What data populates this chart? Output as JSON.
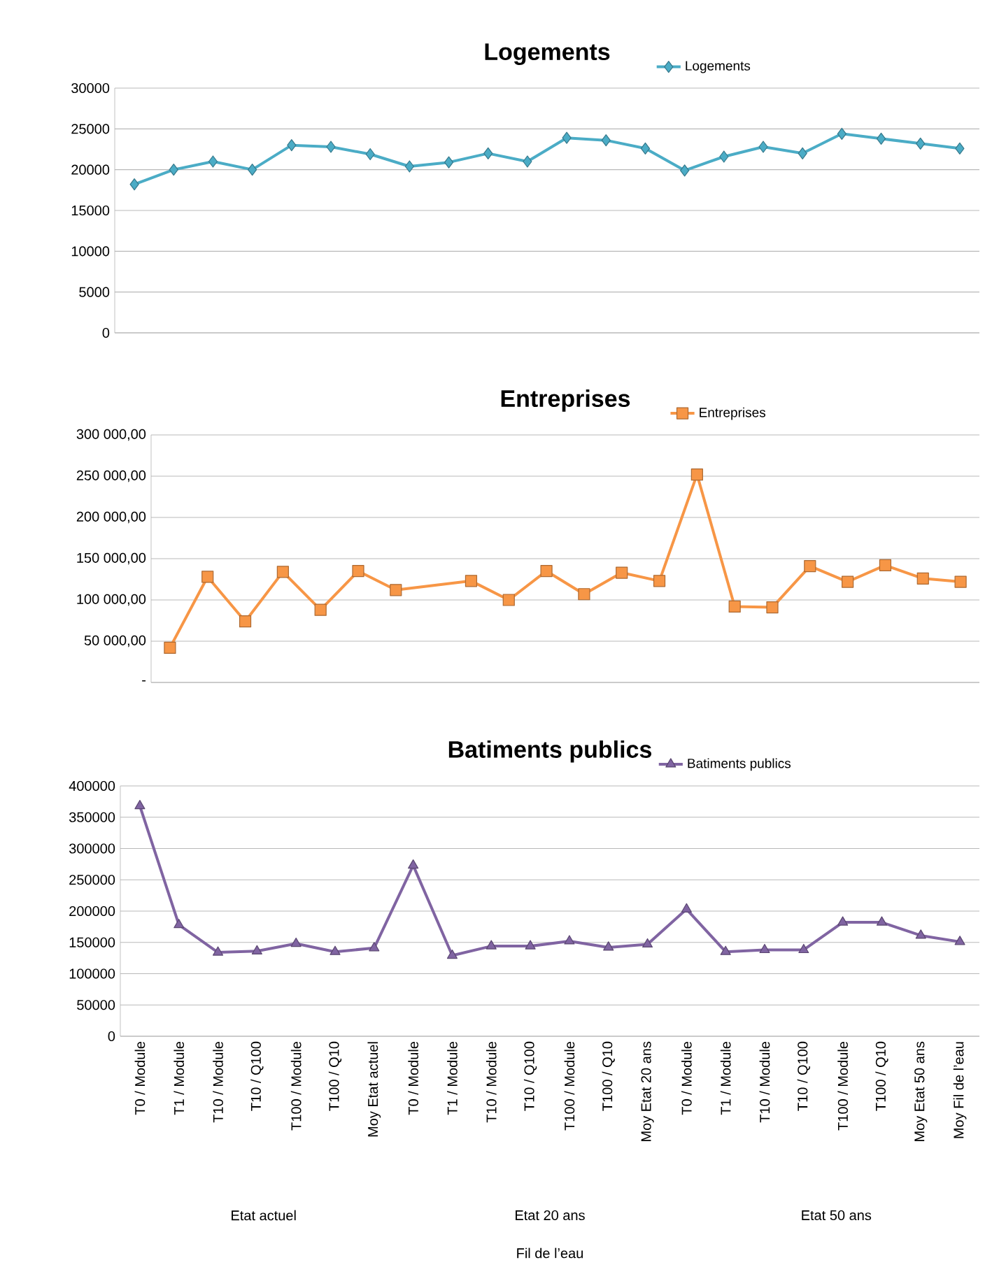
{
  "chart_data": [
    {
      "type": "line",
      "title": "Logements",
      "categories": [
        null,
        null,
        null,
        null,
        null,
        null,
        null,
        null,
        null,
        null,
        null,
        null,
        null,
        null,
        null,
        null,
        null,
        null,
        null,
        null,
        null,
        null
      ],
      "series": [
        {
          "name": "Logements",
          "color": "#4bacc6",
          "values": [
            18200,
            20000,
            21000,
            20000,
            23000,
            22800,
            21900,
            20400,
            20900,
            22000,
            21000,
            23900,
            23600,
            22600,
            19900,
            21600,
            22800,
            22000,
            24400,
            23800,
            23200,
            22600
          ]
        }
      ],
      "ylim": [
        0,
        30000
      ],
      "yticks": [
        0,
        5000,
        10000,
        15000,
        20000,
        25000,
        30000
      ],
      "grid": "y",
      "legend": "top right",
      "marker": "diamond",
      "tick_labels": "y"
    },
    {
      "type": "line",
      "title": "Entreprises",
      "categories": [
        null,
        null,
        null,
        null,
        null,
        null,
        null,
        null,
        null,
        null,
        null,
        null,
        null,
        null,
        null,
        null,
        null,
        null,
        null,
        null,
        null,
        null
      ],
      "series": [
        {
          "name": "Entreprises",
          "color": "#f79646",
          "values": [
            42000,
            128000,
            74000,
            134000,
            88000,
            135000,
            112000,
            null,
            123000,
            100000,
            135000,
            107000,
            133000,
            123000,
            252000,
            92000,
            91000,
            141000,
            122000,
            142000,
            126000,
            122000
          ]
        }
      ],
      "ylim": [
        0,
        300000
      ],
      "yticks": [
        {
          "value": 0,
          "label": "-"
        },
        {
          "value": 50000,
          "label": "50 000,00"
        },
        {
          "value": 100000,
          "label": "100 000,00"
        },
        {
          "value": 150000,
          "label": "150 000,00"
        },
        {
          "value": 200000,
          "label": "200 000,00"
        },
        {
          "value": 250000,
          "label": "250 000,00"
        },
        {
          "value": 300000,
          "label": "300 000,00"
        }
      ],
      "grid": "y",
      "legend": "top right",
      "marker": "square",
      "tick_labels": "y"
    },
    {
      "type": "line",
      "title": "Batiments publics",
      "categories": [
        "T0 / Module",
        "T1 / Module",
        "T10 / Module",
        "T10 / Q100",
        "T100 / Module",
        "T100 / Q10",
        "Moy Etat actuel",
        "T0 / Module",
        "T1 / Module",
        "T10 / Module",
        "T10 / Q100",
        "T100 / Module",
        "T100 / Q10",
        "Moy Etat 20 ans",
        "T0 / Module",
        "T1 / Module",
        "T10 / Module",
        "T10 / Q100",
        "T100 / Module",
        "T100 / Q10",
        "Moy Etat  50 ans",
        "Moy Fil de l’eau"
      ],
      "series": [
        {
          "name": "Batiments publics",
          "color": "#8064a2",
          "values": [
            368000,
            178000,
            134000,
            136000,
            148000,
            135000,
            141000,
            273000,
            129000,
            144000,
            144000,
            152000,
            142000,
            147000,
            203000,
            135000,
            138000,
            138000,
            182000,
            182000,
            161000,
            151000
          ]
        }
      ],
      "ylim": [
        0,
        400000
      ],
      "yticks": [
        0,
        50000,
        100000,
        150000,
        200000,
        250000,
        300000,
        350000,
        400000
      ],
      "grid": "y",
      "legend": "top right",
      "marker": "triangle",
      "annotations": [
        "Etat actuel",
        "Etat 20 ans",
        "Etat 50 ans",
        "Fil de l’eau"
      ]
    }
  ]
}
